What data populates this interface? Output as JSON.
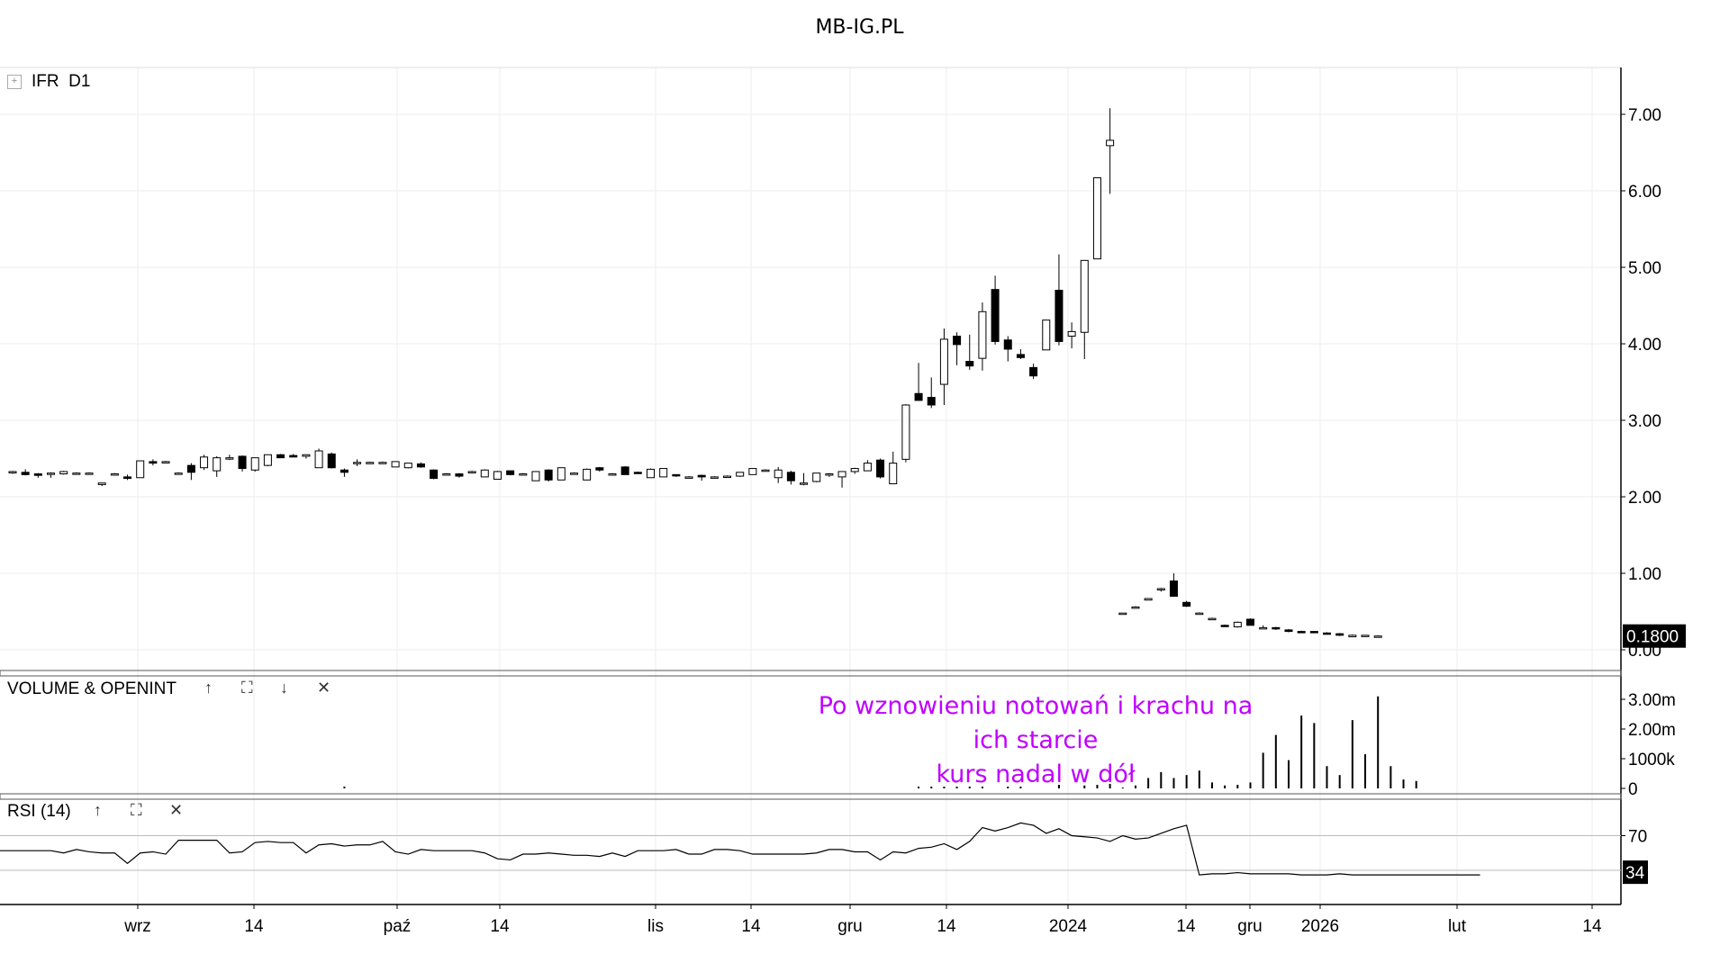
{
  "title": "MB-IG.PL",
  "panes": {
    "price": {
      "symbol": "IFR",
      "timeframe": "D1",
      "collapse_glyph": "+"
    },
    "volume": {
      "label": "VOLUME & OPENINT"
    },
    "rsi": {
      "label": "RSI (14)"
    }
  },
  "toolbar_icons": {
    "up": "↑",
    "maximize": "⛶",
    "down": "↓",
    "close": "✕"
  },
  "annotation": {
    "line1": "Po wznowieniu notowań i krachu na ich starcie",
    "line2": "kurs nadal w dół"
  },
  "colors": {
    "annotation": "#c000ff",
    "up_candle_fill": "#ffffff",
    "down_candle_fill": "#000000",
    "last_price_bg": "#000000"
  },
  "chart_data": [
    {
      "type": "candlestick",
      "pane": "price",
      "ylim": [
        0,
        7.5
      ],
      "y_ticks": [
        "0.00",
        "1.00",
        "2.00",
        "3.00",
        "4.00",
        "5.00",
        "6.00",
        "7.00"
      ],
      "x_tick_labels": [
        "wrz",
        "14",
        "paź",
        "14",
        "lis",
        "14",
        "gru",
        "14",
        "2024",
        "14",
        "gru",
        "2026",
        "lut",
        "14"
      ],
      "last_price_label": "0.1800",
      "ohlc": [
        [
          2.32,
          2.34,
          2.3,
          2.33
        ],
        [
          2.32,
          2.36,
          2.28,
          2.29
        ],
        [
          2.3,
          2.31,
          2.25,
          2.28
        ],
        [
          2.3,
          2.32,
          2.25,
          2.31
        ],
        [
          2.3,
          2.34,
          2.29,
          2.33
        ],
        [
          2.31,
          2.32,
          2.29,
          2.31
        ],
        [
          2.31,
          2.32,
          2.29,
          2.31
        ],
        [
          2.16,
          2.18,
          2.14,
          2.18
        ],
        [
          2.3,
          2.31,
          2.29,
          2.3
        ],
        [
          2.26,
          2.29,
          2.22,
          2.24
        ],
        [
          2.25,
          2.47,
          2.25,
          2.47
        ],
        [
          2.46,
          2.49,
          2.41,
          2.44
        ],
        [
          2.45,
          2.47,
          2.44,
          2.46
        ],
        [
          2.31,
          2.32,
          2.3,
          2.31
        ],
        [
          2.41,
          2.44,
          2.22,
          2.32
        ],
        [
          2.38,
          2.55,
          2.35,
          2.52
        ],
        [
          2.34,
          2.53,
          2.26,
          2.51
        ],
        [
          2.5,
          2.55,
          2.48,
          2.51
        ],
        [
          2.53,
          2.54,
          2.33,
          2.37
        ],
        [
          2.35,
          2.51,
          2.33,
          2.51
        ],
        [
          2.41,
          2.55,
          2.4,
          2.55
        ],
        [
          2.55,
          2.56,
          2.51,
          2.51
        ],
        [
          2.54,
          2.56,
          2.52,
          2.52
        ],
        [
          2.53,
          2.55,
          2.5,
          2.55
        ],
        [
          2.38,
          2.63,
          2.38,
          2.6
        ],
        [
          2.56,
          2.58,
          2.37,
          2.38
        ],
        [
          2.35,
          2.37,
          2.26,
          2.32
        ],
        [
          2.44,
          2.49,
          2.4,
          2.45
        ],
        [
          2.45,
          2.46,
          2.44,
          2.45
        ],
        [
          2.45,
          2.46,
          2.44,
          2.45
        ],
        [
          2.39,
          2.46,
          2.39,
          2.46
        ],
        [
          2.38,
          2.44,
          2.37,
          2.44
        ],
        [
          2.43,
          2.45,
          2.38,
          2.39
        ],
        [
          2.35,
          2.36,
          2.23,
          2.24
        ],
        [
          2.3,
          2.31,
          2.28,
          2.3
        ],
        [
          2.3,
          2.31,
          2.25,
          2.27
        ],
        [
          2.33,
          2.34,
          2.31,
          2.33
        ],
        [
          2.26,
          2.36,
          2.26,
          2.35
        ],
        [
          2.23,
          2.34,
          2.23,
          2.33
        ],
        [
          2.34,
          2.34,
          2.28,
          2.29
        ],
        [
          2.3,
          2.31,
          2.28,
          2.3
        ],
        [
          2.21,
          2.33,
          2.21,
          2.33
        ],
        [
          2.35,
          2.36,
          2.2,
          2.22
        ],
        [
          2.22,
          2.38,
          2.22,
          2.38
        ],
        [
          2.31,
          2.32,
          2.3,
          2.31
        ],
        [
          2.22,
          2.37,
          2.22,
          2.36
        ],
        [
          2.38,
          2.39,
          2.33,
          2.35
        ],
        [
          2.3,
          2.31,
          2.29,
          2.3
        ],
        [
          2.39,
          2.4,
          2.29,
          2.29
        ],
        [
          2.32,
          2.33,
          2.3,
          2.31
        ],
        [
          2.25,
          2.37,
          2.25,
          2.36
        ],
        [
          2.26,
          2.37,
          2.26,
          2.37
        ],
        [
          2.29,
          2.29,
          2.26,
          2.28
        ],
        [
          2.26,
          2.27,
          2.25,
          2.26
        ],
        [
          2.28,
          2.29,
          2.21,
          2.26
        ],
        [
          2.26,
          2.27,
          2.24,
          2.26
        ],
        [
          2.27,
          2.28,
          2.26,
          2.27
        ],
        [
          2.27,
          2.32,
          2.26,
          2.32
        ],
        [
          2.29,
          2.37,
          2.29,
          2.37
        ],
        [
          2.34,
          2.36,
          2.33,
          2.35
        ],
        [
          2.25,
          2.39,
          2.18,
          2.35
        ],
        [
          2.32,
          2.34,
          2.16,
          2.21
        ],
        [
          2.18,
          2.31,
          2.15,
          2.18
        ],
        [
          2.2,
          2.31,
          2.19,
          2.31
        ],
        [
          2.29,
          2.31,
          2.26,
          2.3
        ],
        [
          2.26,
          2.33,
          2.12,
          2.33
        ],
        [
          2.33,
          2.38,
          2.3,
          2.37
        ],
        [
          2.34,
          2.48,
          2.34,
          2.44
        ],
        [
          2.48,
          2.5,
          2.24,
          2.26
        ],
        [
          2.17,
          2.59,
          2.17,
          2.44
        ],
        [
          2.49,
          3.21,
          2.45,
          3.2
        ],
        [
          3.35,
          3.75,
          3.31,
          3.26
        ],
        [
          3.3,
          3.56,
          3.16,
          3.2
        ],
        [
          3.47,
          4.2,
          3.2,
          4.06
        ],
        [
          4.1,
          4.15,
          3.72,
          3.99
        ],
        [
          3.77,
          4.12,
          3.66,
          3.71
        ],
        [
          3.81,
          4.54,
          3.65,
          4.42
        ],
        [
          4.71,
          4.89,
          3.99,
          4.03
        ],
        [
          4.05,
          4.1,
          3.77,
          3.93
        ],
        [
          3.86,
          3.93,
          3.8,
          3.82
        ],
        [
          3.69,
          3.74,
          3.54,
          3.58
        ],
        [
          3.92,
          4.3,
          3.92,
          4.31
        ],
        [
          4.7,
          5.17,
          3.98,
          4.03
        ],
        [
          4.1,
          4.28,
          3.94,
          4.16
        ],
        [
          4.15,
          5.09,
          3.8,
          5.09
        ],
        [
          5.11,
          6.15,
          5.11,
          6.17
        ],
        [
          6.59,
          7.08,
          5.96,
          6.66
        ],
        [
          0.47,
          0.48,
          0.46,
          0.48
        ],
        [
          0.55,
          0.57,
          0.54,
          0.56
        ],
        [
          0.65,
          0.67,
          0.65,
          0.67
        ],
        [
          0.8,
          0.81,
          0.76,
          0.8
        ],
        [
          0.9,
          1.0,
          0.7,
          0.7
        ],
        [
          0.62,
          0.64,
          0.56,
          0.57
        ],
        [
          0.48,
          0.49,
          0.47,
          0.48
        ],
        [
          0.41,
          0.42,
          0.4,
          0.41
        ],
        [
          0.32,
          0.33,
          0.31,
          0.31
        ],
        [
          0.3,
          0.37,
          0.29,
          0.36
        ],
        [
          0.4,
          0.41,
          0.32,
          0.32
        ],
        [
          0.29,
          0.32,
          0.27,
          0.29
        ],
        [
          0.29,
          0.3,
          0.26,
          0.28
        ],
        [
          0.26,
          0.27,
          0.23,
          0.24
        ],
        [
          0.24,
          0.25,
          0.22,
          0.23
        ],
        [
          0.24,
          0.24,
          0.22,
          0.23
        ],
        [
          0.22,
          0.23,
          0.21,
          0.21
        ],
        [
          0.21,
          0.22,
          0.18,
          0.19
        ],
        [
          0.17,
          0.2,
          0.17,
          0.19
        ],
        [
          0.18,
          0.19,
          0.17,
          0.19
        ],
        [
          0.18,
          0.19,
          0.17,
          0.18
        ]
      ]
    },
    {
      "type": "bar",
      "pane": "volume",
      "ylim": [
        0,
        3200000
      ],
      "y_ticks": [
        "0",
        "1000k",
        "2.00m",
        "3.00m"
      ],
      "volume_start_index": 87,
      "values": [
        30000,
        100000,
        350000,
        550000,
        350000,
        450000,
        600000,
        200000,
        100000,
        120000,
        200000,
        1200000,
        1800000,
        950000,
        2450000,
        2200000,
        750000,
        450000,
        2300000,
        1150000,
        3100000,
        750000,
        300000,
        250000
      ],
      "dots": [
        {
          "index": 26,
          "value": 20000
        },
        {
          "index": 71,
          "value": 20000
        },
        {
          "index": 72,
          "value": 20000
        },
        {
          "index": 73,
          "value": 20000
        },
        {
          "index": 74,
          "value": 20000
        },
        {
          "index": 75,
          "value": 20000
        },
        {
          "index": 76,
          "value": 20000
        },
        {
          "index": 78,
          "value": 20000
        },
        {
          "index": 79,
          "value": 20000
        },
        {
          "index": 82,
          "value": 120000
        },
        {
          "index": 84,
          "value": 100000
        },
        {
          "index": 85,
          "value": 120000
        },
        {
          "index": 86,
          "value": 150000
        }
      ]
    },
    {
      "type": "line",
      "pane": "rsi",
      "ylim": [
        20,
        90
      ],
      "reference_lines": [
        70,
        40
      ],
      "y_ticks": [
        "70"
      ],
      "last_value_label": "34",
      "values": [
        57,
        57,
        57,
        57,
        55,
        58,
        56,
        55,
        55,
        46,
        55,
        56,
        54,
        66,
        66,
        66,
        66,
        55,
        56,
        64,
        65,
        64,
        64,
        55,
        62,
        63,
        61,
        62,
        62,
        65,
        56,
        54,
        58,
        57,
        57,
        57,
        57,
        55,
        50,
        49,
        54,
        54,
        55,
        54,
        53,
        53,
        52,
        55,
        52,
        57,
        57,
        57,
        58,
        54,
        54,
        58,
        58,
        57,
        54,
        54,
        54,
        54,
        54,
        55,
        58,
        58,
        56,
        56,
        49,
        56,
        55,
        59,
        60,
        63,
        58,
        65,
        77,
        74,
        77,
        81,
        79,
        72,
        76,
        70,
        69,
        68,
        65,
        70,
        67,
        68,
        72,
        76,
        79,
        36,
        37,
        37,
        38,
        37,
        37,
        37,
        37,
        36,
        36,
        36,
        37,
        36,
        36,
        36,
        36,
        36,
        36,
        36,
        36,
        36,
        36,
        36
      ]
    }
  ]
}
